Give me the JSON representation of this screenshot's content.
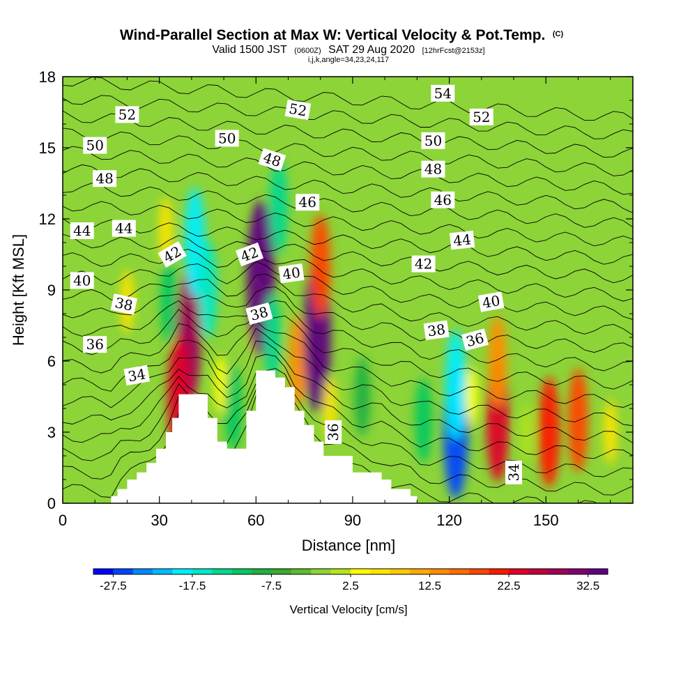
{
  "title": {
    "main": "Wind-Parallel Section at Max W: Vertical Velocity & Pot.Temp.",
    "copyright": "(C)",
    "valid_prefix": "Valid 1500 JST",
    "valid_utc": "(0600Z)",
    "valid_date": "SAT 29 Aug 2020",
    "forecast": "[12hrFcst@2153z]",
    "indices": "i,j,k,angle=34,23,24,117"
  },
  "chart_data": {
    "type": "heatmap",
    "xlabel": "Distance [nm]",
    "ylabel": "Height [Kft MSL]",
    "xlim": [
      0,
      177
    ],
    "ylim": [
      0,
      18
    ],
    "x_ticks": [
      0,
      30,
      60,
      90,
      120,
      150
    ],
    "y_ticks": [
      0,
      3,
      6,
      9,
      12,
      15,
      18
    ],
    "colorbar": {
      "title": "Vertical Velocity [cm/s]",
      "tick_labels": [
        "-27.5",
        "-17.5",
        "-7.5",
        "2.5",
        "12.5",
        "22.5",
        "32.5"
      ],
      "tick_values": [
        -27.5,
        -17.5,
        -7.5,
        2.5,
        12.5,
        22.5,
        32.5
      ],
      "levels_min": -30,
      "levels_max": 35,
      "levels_step": 2.5,
      "colors": [
        "#0000ff",
        "#0044ff",
        "#0088ff",
        "#00bbff",
        "#00eeff",
        "#00e8c8",
        "#00d890",
        "#00c860",
        "#20b040",
        "#3ca82e",
        "#5cbc2e",
        "#8cd438",
        "#b4e41a",
        "#ffff00",
        "#ffe400",
        "#ffc800",
        "#ffaa00",
        "#ff8c00",
        "#ff6c00",
        "#ff4400",
        "#ff1800",
        "#e00028",
        "#c0003c",
        "#a00058",
        "#800070",
        "#600080"
      ]
    },
    "w_field_cm_s": [
      {
        "x": 20,
        "y": 8.5,
        "w": 5
      },
      {
        "x": 32,
        "y": 11.5,
        "w": 6
      },
      {
        "x": 33,
        "y": 8.5,
        "w": -12
      },
      {
        "x": 39,
        "y": 7.0,
        "w": 28
      },
      {
        "x": 36,
        "y": 4.5,
        "w": 24
      },
      {
        "x": 41,
        "y": 11.0,
        "w": -20
      },
      {
        "x": 45,
        "y": 9.0,
        "w": -16
      },
      {
        "x": 49,
        "y": 5.0,
        "w": 3
      },
      {
        "x": 53,
        "y": 4.0,
        "w": -12
      },
      {
        "x": 60,
        "y": 8.0,
        "w": 10
      },
      {
        "x": 61.5,
        "y": 9.5,
        "w": 35
      },
      {
        "x": 65,
        "y": 7.0,
        "w": -13
      },
      {
        "x": 67,
        "y": 12.5,
        "w": -15
      },
      {
        "x": 73,
        "y": 6.0,
        "w": 14
      },
      {
        "x": 79,
        "y": 7.0,
        "w": 33
      },
      {
        "x": 80,
        "y": 10.0,
        "w": 18
      },
      {
        "x": 83,
        "y": 4.0,
        "w": 5
      },
      {
        "x": 93,
        "y": 4.5,
        "w": -10
      },
      {
        "x": 112,
        "y": 3.5,
        "w": -12
      },
      {
        "x": 122,
        "y": 3.0,
        "w": -27.5
      },
      {
        "x": 122,
        "y": 5.0,
        "w": -20
      },
      {
        "x": 127,
        "y": 4.5,
        "w": 3
      },
      {
        "x": 135,
        "y": 3.5,
        "w": 24
      },
      {
        "x": 135,
        "y": 6.0,
        "w": 14
      },
      {
        "x": 144,
        "y": 3.0,
        "w": 2
      },
      {
        "x": 151,
        "y": 3.0,
        "w": 20
      },
      {
        "x": 160,
        "y": 3.5,
        "w": 18
      },
      {
        "x": 170,
        "y": 3.0,
        "w": 5
      }
    ],
    "terrain_kft": [
      {
        "x": 15,
        "y": 0.3
      },
      {
        "x": 17,
        "y": 0.6
      },
      {
        "x": 20,
        "y": 1.0
      },
      {
        "x": 23,
        "y": 1.3
      },
      {
        "x": 26,
        "y": 1.7
      },
      {
        "x": 29,
        "y": 2.3
      },
      {
        "x": 32,
        "y": 3.0
      },
      {
        "x": 34,
        "y": 3.6
      },
      {
        "x": 36,
        "y": 4.6
      },
      {
        "x": 45,
        "y": 3.6
      },
      {
        "x": 48,
        "y": 2.6
      },
      {
        "x": 51,
        "y": 2.3
      },
      {
        "x": 57,
        "y": 3.9
      },
      {
        "x": 60,
        "y": 5.6
      },
      {
        "x": 66,
        "y": 5.3
      },
      {
        "x": 69,
        "y": 4.9
      },
      {
        "x": 72,
        "y": 3.9
      },
      {
        "x": 75,
        "y": 3.3
      },
      {
        "x": 78,
        "y": 2.6
      },
      {
        "x": 81,
        "y": 2.0
      },
      {
        "x": 90,
        "y": 1.3
      },
      {
        "x": 99,
        "y": 1.0
      },
      {
        "x": 102,
        "y": 0.6
      },
      {
        "x": 108,
        "y": 0.3
      },
      {
        "x": 110,
        "y": 0
      }
    ],
    "theta_labels": [
      {
        "x": 20,
        "y": 16.4,
        "text": "52",
        "angle": 0
      },
      {
        "x": 73,
        "y": 16.6,
        "text": "52",
        "angle": 10
      },
      {
        "x": 118,
        "y": 17.3,
        "text": "54",
        "angle": 0
      },
      {
        "x": 130,
        "y": 16.3,
        "text": "52",
        "angle": 0
      },
      {
        "x": 10,
        "y": 15.1,
        "text": "50",
        "angle": 0
      },
      {
        "x": 51,
        "y": 15.4,
        "text": "50",
        "angle": 0
      },
      {
        "x": 115,
        "y": 15.3,
        "text": "50",
        "angle": 0
      },
      {
        "x": 13,
        "y": 13.7,
        "text": "48",
        "angle": 0
      },
      {
        "x": 65,
        "y": 14.5,
        "text": "48",
        "angle": 18
      },
      {
        "x": 115,
        "y": 14.1,
        "text": "48",
        "angle": 0
      },
      {
        "x": 76,
        "y": 12.7,
        "text": "46",
        "angle": 0
      },
      {
        "x": 118,
        "y": 12.8,
        "text": "46",
        "angle": 0
      },
      {
        "x": 6,
        "y": 11.5,
        "text": "44",
        "angle": 0
      },
      {
        "x": 19,
        "y": 11.6,
        "text": "44",
        "angle": 0
      },
      {
        "x": 124,
        "y": 11.1,
        "text": "44",
        "angle": -6
      },
      {
        "x": 34,
        "y": 10.5,
        "text": "42",
        "angle": -30
      },
      {
        "x": 58,
        "y": 10.5,
        "text": "42",
        "angle": -20
      },
      {
        "x": 112,
        "y": 10.1,
        "text": "42",
        "angle": 0
      },
      {
        "x": 6,
        "y": 9.4,
        "text": "40",
        "angle": 0
      },
      {
        "x": 71,
        "y": 9.7,
        "text": "40",
        "angle": -8
      },
      {
        "x": 133,
        "y": 8.5,
        "text": "40",
        "angle": -10
      },
      {
        "x": 19,
        "y": 8.4,
        "text": "38",
        "angle": 12
      },
      {
        "x": 61,
        "y": 8.0,
        "text": "38",
        "angle": -15
      },
      {
        "x": 116,
        "y": 7.3,
        "text": "38",
        "angle": -8
      },
      {
        "x": 10,
        "y": 6.7,
        "text": "36",
        "angle": 0
      },
      {
        "x": 128,
        "y": 6.9,
        "text": "36",
        "angle": -15
      },
      {
        "x": 84,
        "y": 3.0,
        "text": "36",
        "angle": -90
      },
      {
        "x": 23,
        "y": 5.4,
        "text": "34",
        "angle": -10
      },
      {
        "x": 140,
        "y": 1.3,
        "text": "34",
        "angle": -90
      }
    ]
  }
}
